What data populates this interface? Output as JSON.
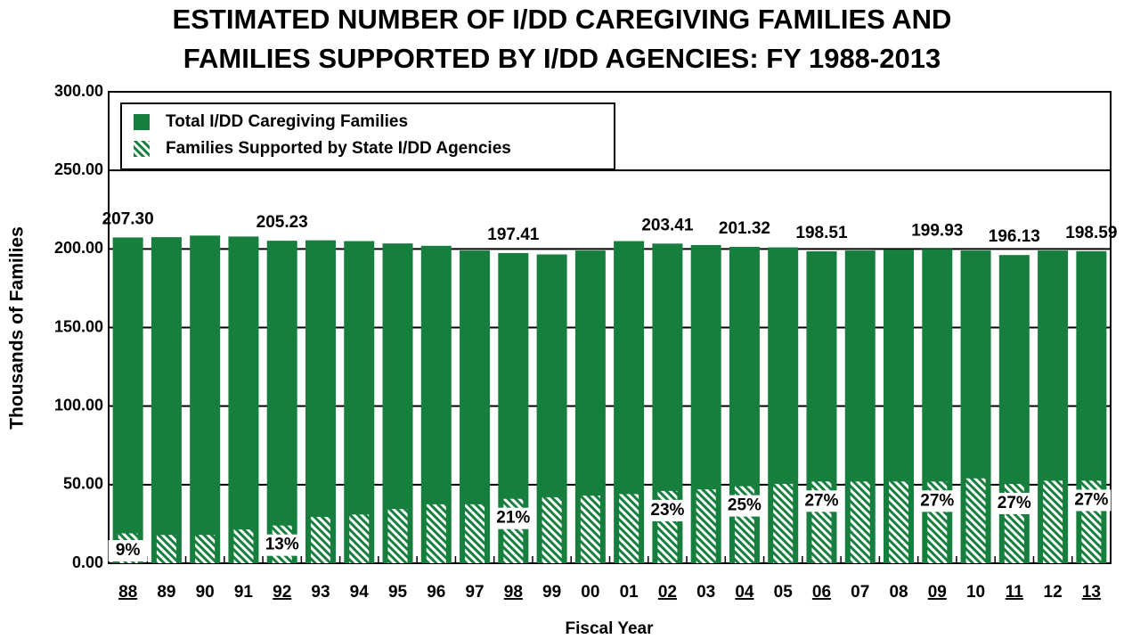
{
  "chart_data": {
    "type": "overlapping_bar",
    "title": [
      "ESTIMATED NUMBER OF I/DD CAREGIVING FAMILIES AND",
      "FAMILIES SUPPORTED BY I/DD AGENCIES: FY 1988-2013"
    ],
    "y_label": "Thousands of Families",
    "x_label": "Fiscal Year",
    "categories": [
      "88",
      "89",
      "90",
      "91",
      "92",
      "93",
      "94",
      "95",
      "96",
      "97",
      "98",
      "99",
      "00",
      "01",
      "02",
      "03",
      "04",
      "05",
      "06",
      "07",
      "08",
      "09",
      "10",
      "11",
      "12",
      "13"
    ],
    "underline": [
      true,
      false,
      false,
      false,
      true,
      false,
      false,
      false,
      false,
      false,
      true,
      false,
      false,
      false,
      true,
      false,
      true,
      false,
      true,
      false,
      false,
      true,
      false,
      true,
      false,
      true
    ],
    "series": [
      {
        "name": "Total I/DD Caregiving Families",
        "color": "#167f3e",
        "pattern": "solid",
        "values": [
          207.3,
          207.5,
          208.5,
          207.9,
          205.23,
          205.5,
          205,
          203.5,
          202,
          199,
          197.41,
          196.5,
          199,
          205,
          203.41,
          202.5,
          201.32,
          201,
          198.51,
          199,
          199.5,
          199.93,
          199,
          196.13,
          199,
          198.59
        ],
        "value_labels": [
          "207.30",
          null,
          null,
          null,
          "205.23",
          null,
          null,
          null,
          null,
          null,
          "197.41",
          null,
          null,
          null,
          "203.41",
          null,
          "201.32",
          null,
          "198.51",
          null,
          null,
          "199.93",
          null,
          "196.13",
          null,
          "198.59"
        ]
      },
      {
        "name": "Families Supported by State I/DD Agencies",
        "color": "#167f3e",
        "pattern": "hatch",
        "values": [
          19,
          18,
          18,
          21.5,
          24,
          29.5,
          31,
          34.5,
          37.5,
          37.5,
          41,
          42,
          43,
          44,
          46,
          47,
          49,
          50.5,
          52,
          52,
          52,
          52,
          54,
          50.5,
          52.5,
          52.5
        ]
      }
    ],
    "annotations": [
      {
        "x": "88",
        "text": "9%"
      },
      {
        "x": "92",
        "text": "13%"
      },
      {
        "x": "98",
        "text": "21%"
      },
      {
        "x": "02",
        "text": "23%"
      },
      {
        "x": "04",
        "text": "25%"
      },
      {
        "x": "06",
        "text": "27%"
      },
      {
        "x": "09",
        "text": "27%"
      },
      {
        "x": "11",
        "text": "27%"
      },
      {
        "x": "13",
        "text": "27%"
      }
    ],
    "ylim": [
      0,
      300
    ],
    "yticks": [
      {
        "value": 0,
        "label": "0.00"
      },
      {
        "value": 50,
        "label": "50.00"
      },
      {
        "value": 100,
        "label": "100.00"
      },
      {
        "value": 150,
        "label": "150.00"
      },
      {
        "value": 200,
        "label": "200.00"
      },
      {
        "value": 250,
        "label": "250.00"
      },
      {
        "value": 300,
        "label": "300.00"
      }
    ],
    "grid": true,
    "legend": "upper left"
  }
}
